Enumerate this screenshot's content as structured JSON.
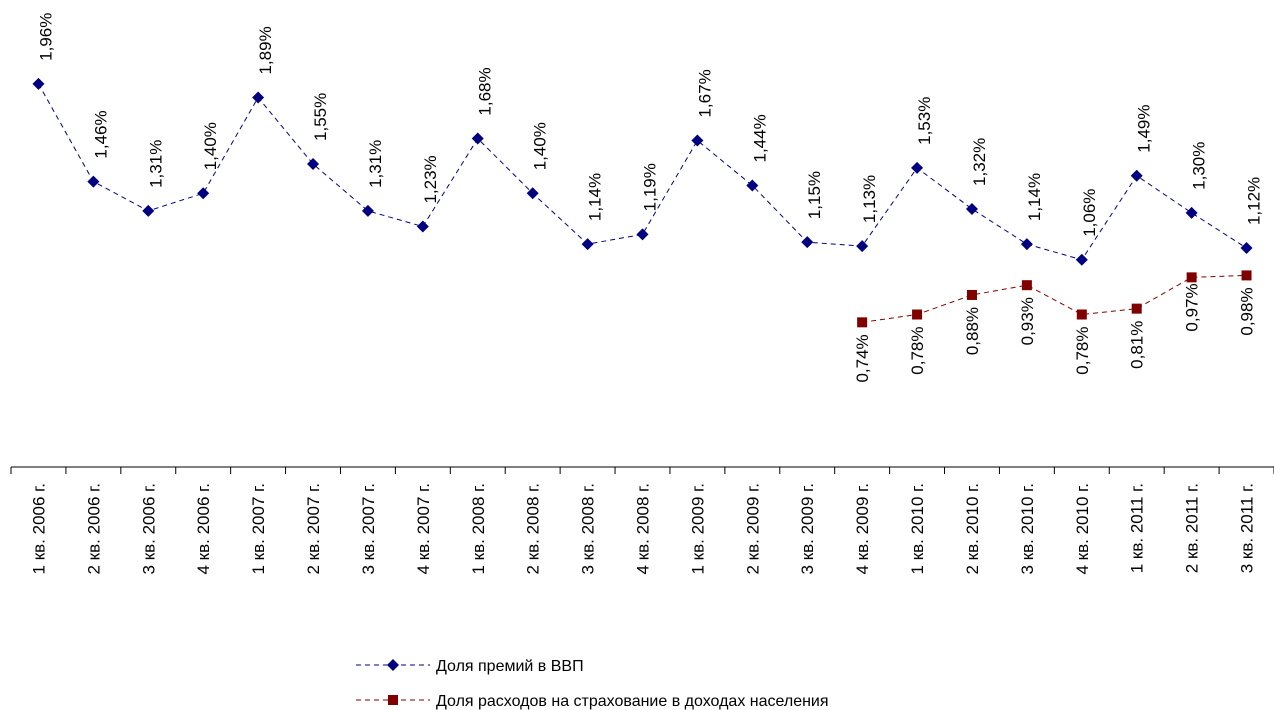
{
  "chart_data": {
    "type": "line",
    "title": "",
    "xlabel": "",
    "ylabel": "",
    "categories": [
      "1 кв. 2006 г.",
      "2 кв. 2006 г.",
      "3 кв. 2006 г.",
      "4 кв. 2006 г.",
      "1 кв. 2007 г.",
      "2 кв. 2007 г.",
      "3 кв. 2007 г.",
      "4 кв. 2007 г.",
      "1 кв. 2008 г.",
      "2 кв. 2008 г.",
      "3 кв. 2008 г.",
      "4 кв. 2008 г.",
      "1 кв. 2009 г.",
      "2 кв. 2009 г.",
      "3 кв. 2009 г.",
      "4 кв. 2009 г.",
      "1 кв. 2010 г.",
      "2 кв. 2010 г.",
      "3 кв. 2010 г.",
      "4 кв. 2010 г.",
      "1 кв. 2011 г.",
      "2 кв. 2011 г.",
      "3 кв. 2011 г."
    ],
    "series": [
      {
        "name": "Доля премий в ВВП",
        "color": "#000080",
        "marker": "diamond",
        "values": [
          1.96,
          1.46,
          1.31,
          1.4,
          1.89,
          1.55,
          1.31,
          1.23,
          1.68,
          1.4,
          1.14,
          1.19,
          1.67,
          1.44,
          1.15,
          1.13,
          1.53,
          1.32,
          1.14,
          1.06,
          1.49,
          1.3,
          1.12
        ],
        "labels": [
          "1,96%",
          "1,46%",
          "1,31%",
          "1,40%",
          "1,89%",
          "1,55%",
          "1,31%",
          "1,23%",
          "1,68%",
          "1,40%",
          "1,14%",
          "1,19%",
          "1,67%",
          "1,44%",
          "1,15%",
          "1,13%",
          "1,53%",
          "1,32%",
          "1,14%",
          "1,06%",
          "1,49%",
          "1,30%",
          "1,12%"
        ]
      },
      {
        "name": "Доля расходов на страхование в доходах населения",
        "color": "#800000",
        "marker": "square",
        "values": [
          null,
          null,
          null,
          null,
          null,
          null,
          null,
          null,
          null,
          null,
          null,
          null,
          null,
          null,
          null,
          0.74,
          0.78,
          0.88,
          0.93,
          0.78,
          0.81,
          0.97,
          0.98
        ],
        "labels": [
          null,
          null,
          null,
          null,
          null,
          null,
          null,
          null,
          null,
          null,
          null,
          null,
          null,
          null,
          null,
          "0,74%",
          "0,78%",
          "0,88%",
          "0,93%",
          "0,78%",
          "0,81%",
          "0,97%",
          "0,98%"
        ]
      }
    ],
    "ylim": [
      0,
      2.0
    ],
    "grid": false,
    "legend_position": "bottom"
  }
}
